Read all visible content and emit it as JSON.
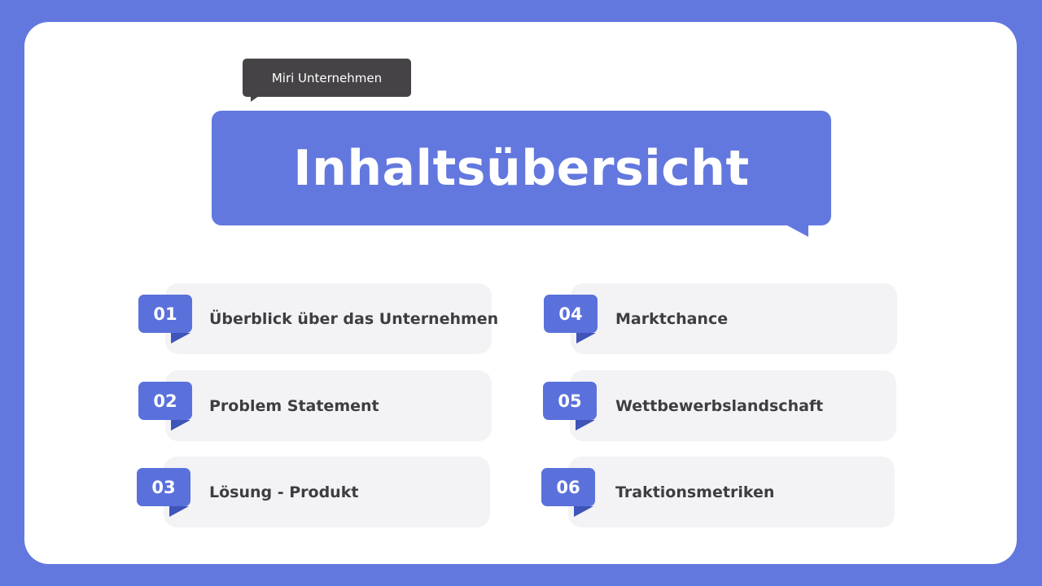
{
  "company": "Miri Unternehmen",
  "title": "Inhaltsübersicht",
  "colors": {
    "accent": "#6378de",
    "badge": "#5a70db",
    "card": "#f3f2f5",
    "tag": "#454345"
  },
  "items": [
    {
      "number": "01",
      "label": "Überblick über das Unternehmen"
    },
    {
      "number": "02",
      "label": "Problem Statement"
    },
    {
      "number": "03",
      "label": "Lösung - Produkt"
    },
    {
      "number": "04",
      "label": "Marktchance"
    },
    {
      "number": "05",
      "label": "Wettbewerbslandschaft"
    },
    {
      "number": "06",
      "label": "Traktionsmetriken"
    }
  ]
}
